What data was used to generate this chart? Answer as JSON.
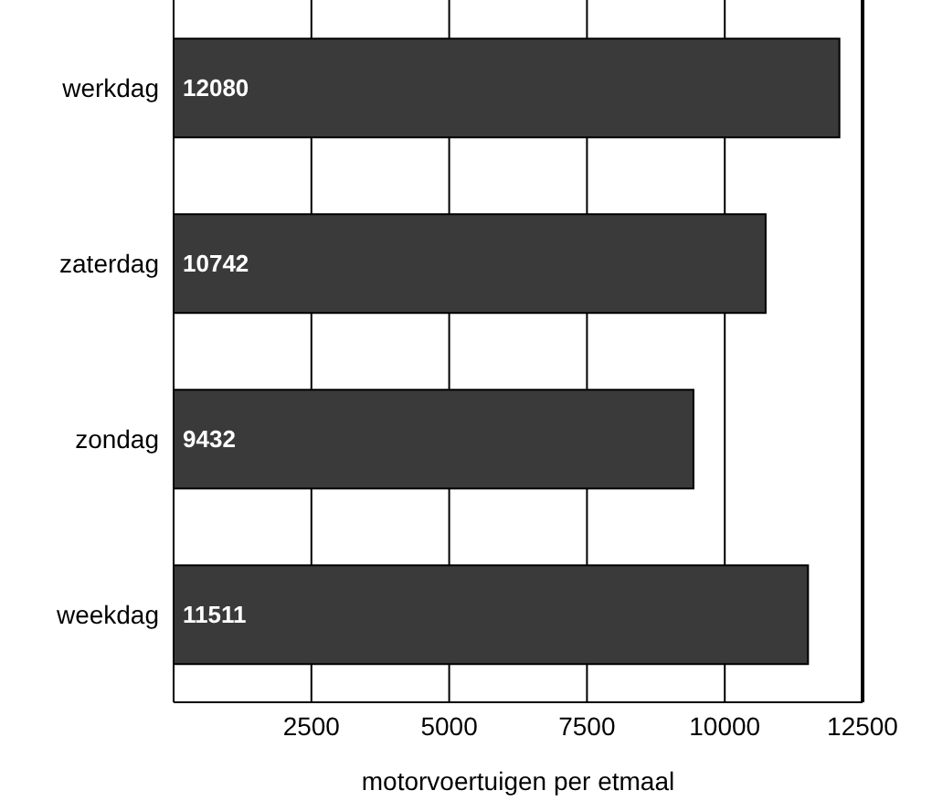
{
  "chart_data": {
    "type": "bar",
    "orientation": "horizontal",
    "categories": [
      "werkdag",
      "zaterdag",
      "zondag",
      "weekdag"
    ],
    "values": [
      12080,
      10742,
      9432,
      11511
    ],
    "color": "#3a3a3a",
    "xlim": [
      0,
      12500
    ],
    "xticks": [
      2500,
      5000,
      7500,
      10000,
      12500
    ],
    "xlabel": "motorvoertuigen per etmaal",
    "grid": "x",
    "data_labels": true
  }
}
